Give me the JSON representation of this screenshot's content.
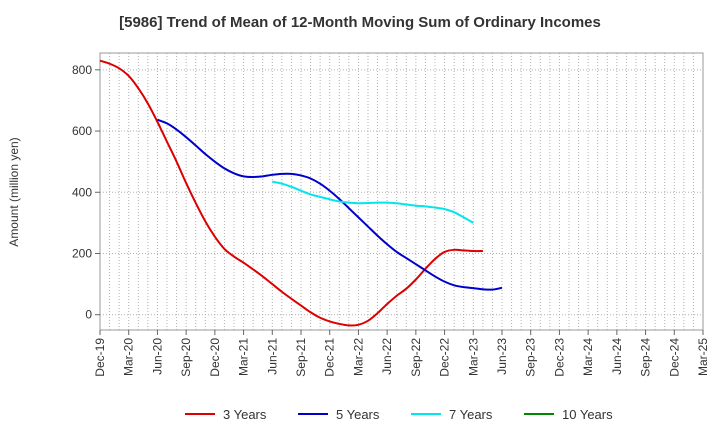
{
  "chart_data": {
    "type": "line",
    "title": "[5986]  Trend of Mean of 12-Month Moving Sum of Ordinary Incomes",
    "xlabel": "",
    "ylabel": "Amount (million yen)",
    "ylim": [
      -50,
      855
    ],
    "yticks": [
      0,
      200,
      400,
      600,
      800
    ],
    "grid": true,
    "legend_position": "bottom",
    "x_tick_labels": [
      "Dec-19",
      "Mar-20",
      "Jun-20",
      "Sep-20",
      "Dec-20",
      "Mar-21",
      "Jun-21",
      "Sep-21",
      "Dec-21",
      "Mar-22",
      "Jun-22",
      "Sep-22",
      "Dec-22",
      "Mar-23",
      "Jun-23",
      "Sep-23",
      "Dec-23",
      "Mar-24",
      "Jun-24",
      "Sep-24",
      "Dec-24",
      "Mar-25"
    ],
    "series": [
      {
        "name": "3 Years",
        "color": "#dd0000",
        "start_index": 0,
        "values": [
          830,
          820,
          805,
          780,
          740,
          690,
          630,
          565,
          500,
          430,
          365,
          305,
          255,
          215,
          190,
          170,
          148,
          125,
          100,
          75,
          52,
          30,
          8,
          -10,
          -22,
          -30,
          -35,
          -33,
          -20,
          5,
          35,
          62,
          85,
          115,
          150,
          182,
          205,
          212,
          210,
          208,
          208
        ]
      },
      {
        "name": "5 Years",
        "color": "#0000cc",
        "start_index": 6,
        "values": [
          637,
          625,
          605,
          580,
          553,
          525,
          500,
          478,
          462,
          452,
          450,
          452,
          457,
          460,
          460,
          455,
          445,
          428,
          405,
          378,
          348,
          318,
          288,
          258,
          230,
          205,
          185,
          165,
          145,
          125,
          108,
          96,
          90,
          87,
          83,
          82,
          88
        ]
      },
      {
        "name": "7 Years",
        "color": "#00e5ee",
        "start_index": 18,
        "values": [
          435,
          428,
          418,
          405,
          393,
          385,
          377,
          370,
          366,
          364,
          365,
          366,
          366,
          364,
          360,
          356,
          354,
          350,
          345,
          335,
          318,
          300
        ]
      },
      {
        "name": "10 Years",
        "color": "#008800",
        "start_index": 0,
        "values": []
      }
    ]
  }
}
